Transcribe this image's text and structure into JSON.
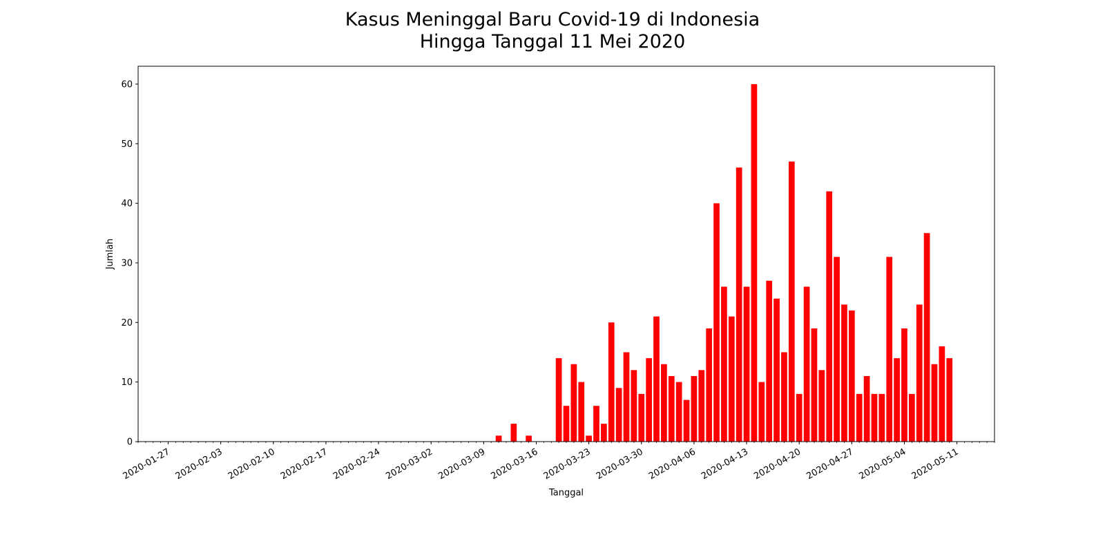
{
  "chart_data": {
    "type": "bar",
    "title_line1": "Kasus Meninggal Baru Covid-19 di Indonesia",
    "title_line2": "Hingga Tanggal 11 Mei 2020",
    "xlabel": "Tanggal",
    "ylabel": "Jumlah",
    "bar_color": "#ff0000",
    "ylim": [
      0,
      63
    ],
    "xlim": [
      "2020-01-23",
      "2020-05-16"
    ],
    "yticks": [
      0,
      10,
      20,
      30,
      40,
      50,
      60
    ],
    "xticks": [
      "2020-01-27",
      "2020-02-03",
      "2020-02-10",
      "2020-02-17",
      "2020-02-24",
      "2020-03-02",
      "2020-03-09",
      "2020-03-16",
      "2020-03-23",
      "2020-03-30",
      "2020-04-06",
      "2020-04-13",
      "2020-04-20",
      "2020-04-27",
      "2020-05-04",
      "2020-05-11"
    ],
    "grid": false,
    "legend": "none",
    "x": [
      "2020-03-11",
      "2020-03-12",
      "2020-03-13",
      "2020-03-14",
      "2020-03-15",
      "2020-03-16",
      "2020-03-17",
      "2020-03-18",
      "2020-03-19",
      "2020-03-20",
      "2020-03-21",
      "2020-03-22",
      "2020-03-23",
      "2020-03-24",
      "2020-03-25",
      "2020-03-26",
      "2020-03-27",
      "2020-03-28",
      "2020-03-29",
      "2020-03-30",
      "2020-03-31",
      "2020-04-01",
      "2020-04-02",
      "2020-04-03",
      "2020-04-04",
      "2020-04-05",
      "2020-04-06",
      "2020-04-07",
      "2020-04-08",
      "2020-04-09",
      "2020-04-10",
      "2020-04-11",
      "2020-04-12",
      "2020-04-13",
      "2020-04-14",
      "2020-04-15",
      "2020-04-16",
      "2020-04-17",
      "2020-04-18",
      "2020-04-19",
      "2020-04-20",
      "2020-04-21",
      "2020-04-22",
      "2020-04-23",
      "2020-04-24",
      "2020-04-25",
      "2020-04-26",
      "2020-04-27",
      "2020-04-28",
      "2020-04-29",
      "2020-04-30",
      "2020-05-01",
      "2020-05-02",
      "2020-05-03",
      "2020-05-04",
      "2020-05-05",
      "2020-05-06",
      "2020-05-07",
      "2020-05-08",
      "2020-05-09",
      "2020-05-10",
      "2020-05-11"
    ],
    "values": [
      1,
      0,
      3,
      0,
      1,
      0,
      0,
      0,
      14,
      6,
      13,
      10,
      1,
      6,
      3,
      20,
      9,
      15,
      12,
      8,
      14,
      21,
      13,
      11,
      10,
      7,
      11,
      12,
      19,
      40,
      26,
      21,
      46,
      26,
      60,
      10,
      27,
      24,
      15,
      47,
      8,
      26,
      19,
      12,
      42,
      31,
      23,
      22,
      8,
      11,
      8,
      8,
      31,
      14,
      19,
      8,
      23,
      35,
      13,
      16,
      14,
      0
    ]
  }
}
